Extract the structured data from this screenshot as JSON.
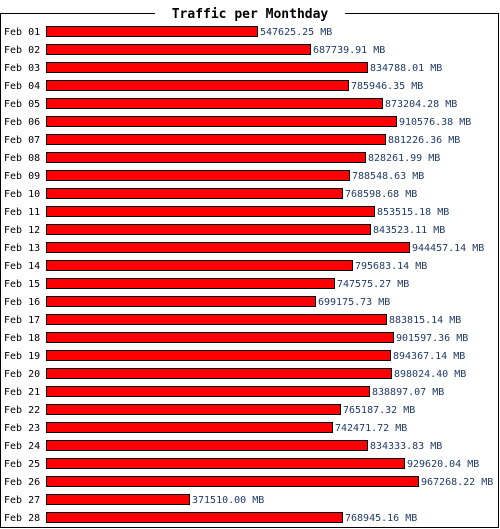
{
  "chart_data": {
    "type": "bar",
    "orientation": "horizontal",
    "title": "Traffic per Monthday",
    "unit": "MB",
    "bar_color": "#ff0000",
    "value_label_color": "#1f3a66",
    "categories": [
      "Feb 01",
      "Feb 02",
      "Feb 03",
      "Feb 04",
      "Feb 05",
      "Feb 06",
      "Feb 07",
      "Feb 08",
      "Feb 09",
      "Feb 10",
      "Feb 11",
      "Feb 12",
      "Feb 13",
      "Feb 14",
      "Feb 15",
      "Feb 16",
      "Feb 17",
      "Feb 18",
      "Feb 19",
      "Feb 20",
      "Feb 21",
      "Feb 22",
      "Feb 23",
      "Feb 24",
      "Feb 25",
      "Feb 26",
      "Feb 27",
      "Feb 28"
    ],
    "values": [
      547625.25,
      687739.91,
      834788.01,
      785946.35,
      873204.28,
      910576.38,
      881226.36,
      828261.99,
      788548.63,
      768598.68,
      853515.18,
      843523.11,
      944457.14,
      795683.14,
      747575.27,
      699175.73,
      883815.14,
      901597.36,
      894367.14,
      898024.4,
      838897.07,
      765187.32,
      742471.72,
      834333.83,
      929620.04,
      967268.22,
      371510.0,
      768945.16
    ],
    "value_labels": [
      "547625.25 MB",
      "687739.91 MB",
      "834788.01 MB",
      "785946.35 MB",
      "873204.28 MB",
      "910576.38 MB",
      "881226.36 MB",
      "828261.99 MB",
      "788548.63 MB",
      "768598.68 MB",
      "853515.18 MB",
      "843523.11 MB",
      "944457.14 MB",
      "795683.14 MB",
      "747575.27 MB",
      "699175.73 MB",
      "883815.14 MB",
      "901597.36 MB",
      "894367.14 MB",
      "898024.40 MB",
      "838897.07 MB",
      "765187.32 MB",
      "742471.72 MB",
      "834333.83 MB",
      "929620.04 MB",
      "967268.22 MB",
      "371510.00 MB",
      "768945.16 MB"
    ],
    "legend": "none",
    "grid": false
  }
}
